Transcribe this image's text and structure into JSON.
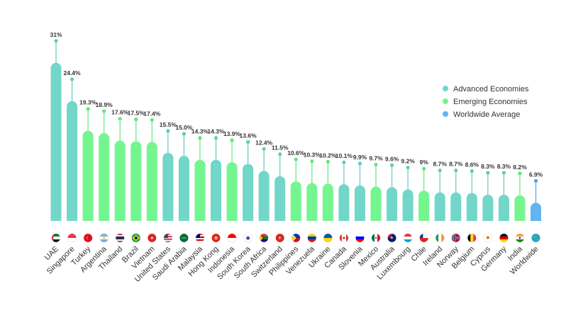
{
  "chart_data": {
    "type": "bar",
    "style": "lollipop-topped bars with country flag icons below the bars",
    "title": "",
    "xlabel": "",
    "ylabel": "",
    "ylim": [
      0,
      33
    ],
    "grid": false,
    "legend_position": "right",
    "value_suffix": "%",
    "legend": [
      {
        "group": "advanced",
        "label": "Advanced Economies",
        "color": "#72d6c9"
      },
      {
        "group": "emerging",
        "label": "Emerging Economies",
        "color": "#75f590"
      },
      {
        "group": "worldwide",
        "label": "Worldwide Average",
        "color": "#62b4f2"
      }
    ],
    "points": [
      {
        "category": "UAE",
        "label": "31%",
        "value": 31.0,
        "group": "advanced",
        "flag": "flag-uae-icon"
      },
      {
        "category": "Singapore",
        "label": "24.4%",
        "value": 24.4,
        "group": "advanced",
        "flag": "flag-singapore-icon"
      },
      {
        "category": "Turkey",
        "label": "19.3%",
        "value": 19.3,
        "group": "emerging",
        "flag": "flag-turkey-icon"
      },
      {
        "category": "Argentina",
        "label": "18.9%",
        "value": 18.9,
        "group": "emerging",
        "flag": "flag-argentina-icon"
      },
      {
        "category": "Thailand",
        "label": "17.6%",
        "value": 17.6,
        "group": "emerging",
        "flag": "flag-thailand-icon"
      },
      {
        "category": "Brazil",
        "label": "17.5%",
        "value": 17.5,
        "group": "emerging",
        "flag": "flag-brazil-icon"
      },
      {
        "category": "Vietnam",
        "label": "17.4%",
        "value": 17.4,
        "group": "emerging",
        "flag": "flag-vietnam-icon"
      },
      {
        "category": "United States",
        "label": "15.5%",
        "value": 15.5,
        "group": "advanced",
        "flag": "flag-united-states-icon"
      },
      {
        "category": "Saudi Arabia",
        "label": "15.0%",
        "value": 15.0,
        "group": "advanced",
        "flag": "flag-saudi-arabia-icon"
      },
      {
        "category": "Malaysia",
        "label": "14.3%",
        "value": 14.3,
        "group": "emerging",
        "flag": "flag-malaysia-icon"
      },
      {
        "category": "Hong Kong",
        "label": "14.3%",
        "value": 14.3,
        "group": "advanced",
        "flag": "flag-hong-kong-icon"
      },
      {
        "category": "Indonesia",
        "label": "13.9%",
        "value": 13.9,
        "group": "emerging",
        "flag": "flag-indonesia-icon"
      },
      {
        "category": "South Korea",
        "label": "13.6%",
        "value": 13.6,
        "group": "advanced",
        "flag": "flag-south-korea-icon"
      },
      {
        "category": "South Africa",
        "label": "12.4%",
        "value": 12.4,
        "group": "advanced",
        "flag": "flag-south-africa-icon"
      },
      {
        "category": "Switzerland",
        "label": "11.5%",
        "value": 11.5,
        "group": "advanced",
        "flag": "flag-switzerland-icon"
      },
      {
        "category": "Philippines",
        "label": "10.6%",
        "value": 10.6,
        "group": "emerging",
        "flag": "flag-philippines-icon"
      },
      {
        "category": "Venezuela",
        "label": "10.3%",
        "value": 10.3,
        "group": "emerging",
        "flag": "flag-venezuela-icon"
      },
      {
        "category": "Ukraine",
        "label": "10.2%",
        "value": 10.2,
        "group": "emerging",
        "flag": "flag-ukraine-icon"
      },
      {
        "category": "Canada",
        "label": "10.1%",
        "value": 10.1,
        "group": "advanced",
        "flag": "flag-canada-icon"
      },
      {
        "category": "Slovenia",
        "label": "9.9%",
        "value": 9.9,
        "group": "advanced",
        "flag": "flag-slovenia-icon"
      },
      {
        "category": "Mexico",
        "label": "9.7%",
        "value": 9.7,
        "group": "emerging",
        "flag": "flag-mexico-icon"
      },
      {
        "category": "Australia",
        "label": "9.6%",
        "value": 9.6,
        "group": "advanced",
        "flag": "flag-australia-icon"
      },
      {
        "category": "Luxembourg",
        "label": "9.2%",
        "value": 9.2,
        "group": "advanced",
        "flag": "flag-luxembourg-icon"
      },
      {
        "category": "Chile",
        "label": "9%",
        "value": 9.0,
        "group": "emerging",
        "flag": "flag-chile-icon"
      },
      {
        "category": "Ireland",
        "label": "8.7%",
        "value": 8.7,
        "group": "advanced",
        "flag": "flag-ireland-icon"
      },
      {
        "category": "Norway",
        "label": "8.7%",
        "value": 8.7,
        "group": "advanced",
        "flag": "flag-norway-icon"
      },
      {
        "category": "Belgium",
        "label": "8.6%",
        "value": 8.6,
        "group": "advanced",
        "flag": "flag-belgium-icon"
      },
      {
        "category": "Cyprus",
        "label": "8.3%",
        "value": 8.3,
        "group": "advanced",
        "flag": "flag-cyprus-icon"
      },
      {
        "category": "Germany",
        "label": "8.3%",
        "value": 8.3,
        "group": "advanced",
        "flag": "flag-germany-icon"
      },
      {
        "category": "India",
        "label": "8.2%",
        "value": 8.2,
        "group": "emerging",
        "flag": "flag-india-icon"
      },
      {
        "category": "Worldwide",
        "label": "6.9%",
        "value": 6.9,
        "group": "worldwide",
        "flag": "globe-icon"
      }
    ]
  }
}
